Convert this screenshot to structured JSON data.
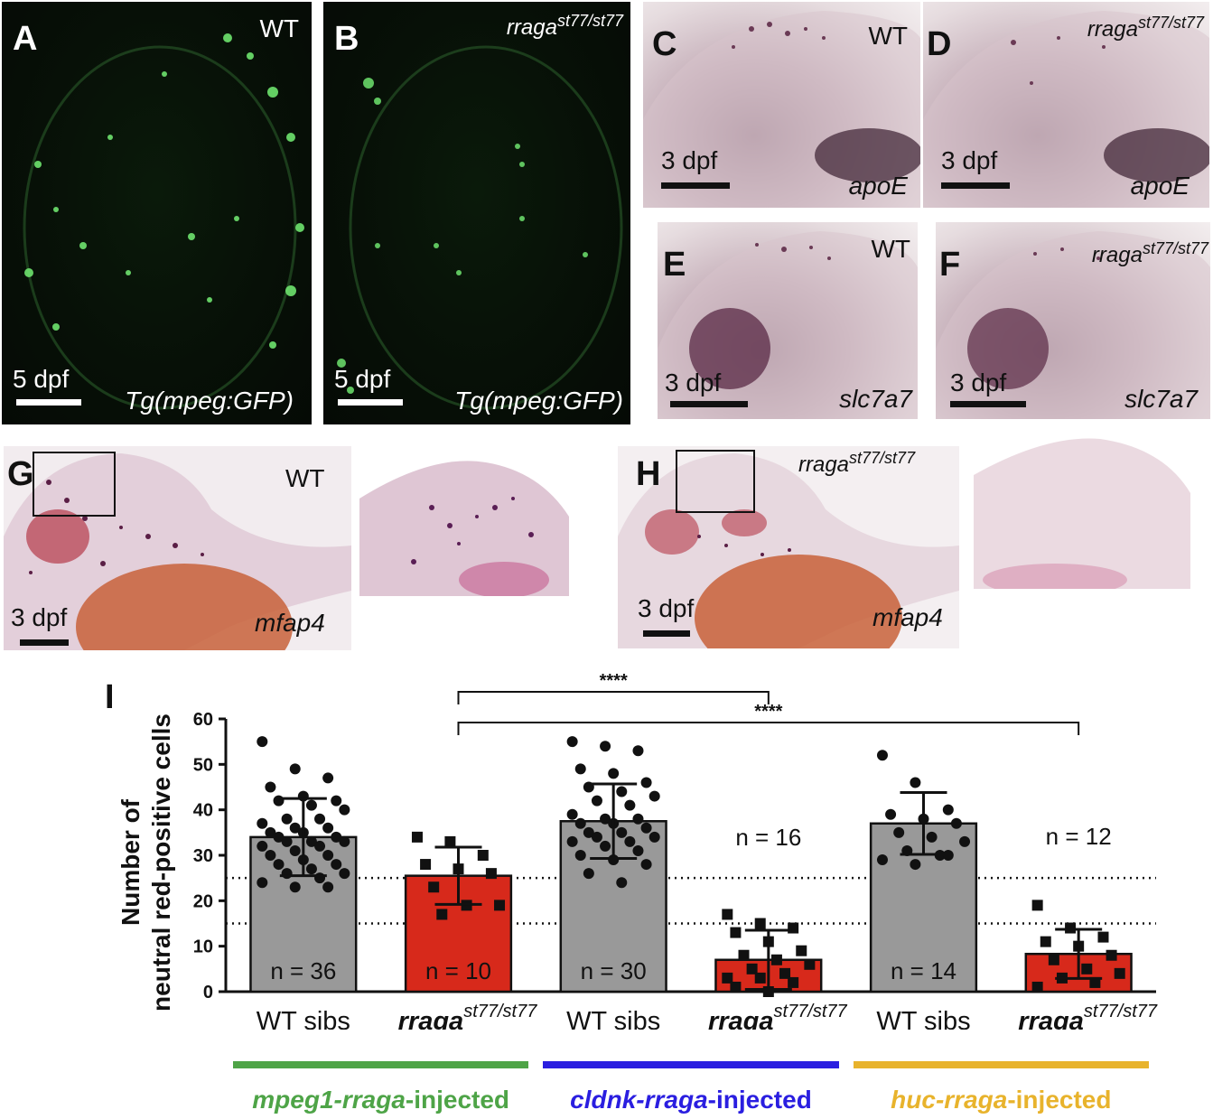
{
  "panels": {
    "A": {
      "letter": "A",
      "genotype": "WT",
      "stage": "5 dpf",
      "marker": "Tg(mpeg:GFP)"
    },
    "B": {
      "letter": "B",
      "genotype_base": "rraga",
      "genotype_sup": "st77/st77",
      "stage": "5 dpf",
      "marker": "Tg(mpeg:GFP)"
    },
    "C": {
      "letter": "C",
      "genotype": "WT",
      "stage": "3 dpf",
      "marker": "apoE"
    },
    "D": {
      "letter": "D",
      "genotype_base": "rraga",
      "genotype_sup": "st77/st77",
      "stage": "3 dpf",
      "marker": "apoE"
    },
    "E": {
      "letter": "E",
      "genotype": "WT",
      "stage": "3 dpf",
      "marker": "slc7a7"
    },
    "F": {
      "letter": "F",
      "genotype_base": "rraga",
      "genotype_sup": "st77/st77",
      "stage": "3 dpf",
      "marker": "slc7a7"
    },
    "G": {
      "letter": "G",
      "genotype": "WT",
      "stage": "3 dpf",
      "marker": "mfap4"
    },
    "H": {
      "letter": "H",
      "genotype_base": "rraga",
      "genotype_sup": "st77/st77",
      "stage": "3 dpf",
      "marker": "mfap4"
    }
  },
  "chart_data": {
    "type": "bar",
    "panel_letter": "I",
    "ylabel_line1": "Number of",
    "ylabel_line2": "neutral red-positive cells",
    "ylim": [
      0,
      60
    ],
    "yticks": [
      "0",
      "10",
      "20",
      "30",
      "40",
      "50",
      "60"
    ],
    "categories": [
      {
        "base": "WT sibs",
        "sup": ""
      },
      {
        "base": "rraga",
        "sup": "st77/st77"
      },
      {
        "base": "WT sibs",
        "sup": ""
      },
      {
        "base": "rraga",
        "sup": "st77/st77"
      },
      {
        "base": "WT sibs",
        "sup": ""
      },
      {
        "base": "rraga",
        "sup": "st77/st77"
      }
    ],
    "values": [
      34,
      25.5,
      37.5,
      7,
      37,
      8.3
    ],
    "sd": [
      8.5,
      6.3,
      8.2,
      6.5,
      6.8,
      5.4
    ],
    "bar_colors": [
      "#999999",
      "#d7291b",
      "#999999",
      "#d7291b",
      "#999999",
      "#d7291b"
    ],
    "n_labels": [
      "n = 36",
      "n = 10",
      "n = 30",
      "n = 16",
      "n = 14",
      "n = 12"
    ],
    "reference_lines": [
      25,
      15
    ],
    "significance": [
      {
        "from": 1,
        "to": 3,
        "label": "****"
      },
      {
        "from": 1,
        "to": 5,
        "label": "****"
      }
    ],
    "points": [
      [
        55,
        49,
        47,
        45,
        43,
        42,
        42,
        41,
        40,
        38,
        38,
        37,
        36,
        36,
        35,
        35,
        34,
        34,
        33,
        33,
        33,
        32,
        32,
        31,
        30,
        30,
        29,
        28,
        28,
        27,
        26,
        26,
        25,
        24,
        23,
        23
      ],
      [
        34,
        33,
        30,
        28,
        27,
        26,
        23,
        19,
        19,
        17
      ],
      [
        55,
        54,
        53,
        49,
        48,
        46,
        45,
        44,
        43,
        42,
        41,
        39,
        38,
        38,
        37,
        37,
        36,
        35,
        35,
        34,
        34,
        33,
        33,
        32,
        31,
        30,
        29,
        28,
        26,
        24
      ],
      [
        17,
        15,
        14,
        13,
        11,
        9,
        8,
        7,
        6,
        5,
        4,
        3,
        3,
        2,
        1,
        0
      ],
      [
        52,
        46,
        40,
        39,
        38,
        37,
        35,
        34,
        33,
        31,
        30,
        29,
        28,
        30
      ],
      [
        19,
        14,
        12,
        11,
        10,
        8,
        7,
        5,
        4,
        3,
        2,
        1
      ]
    ],
    "groups": [
      {
        "label_prefix": "mpeg1-rraga",
        "label_suffix": "-injected",
        "color": "#4ea447",
        "bars": [
          0,
          1
        ]
      },
      {
        "label_prefix": "cldnk-rraga",
        "label_suffix": "-injected",
        "color": "#2a1ee0",
        "bars": [
          2,
          3
        ]
      },
      {
        "label_prefix": "huc-rraga",
        "label_suffix": "-injected",
        "color": "#e8b32c",
        "bars": [
          4,
          5
        ]
      }
    ]
  }
}
